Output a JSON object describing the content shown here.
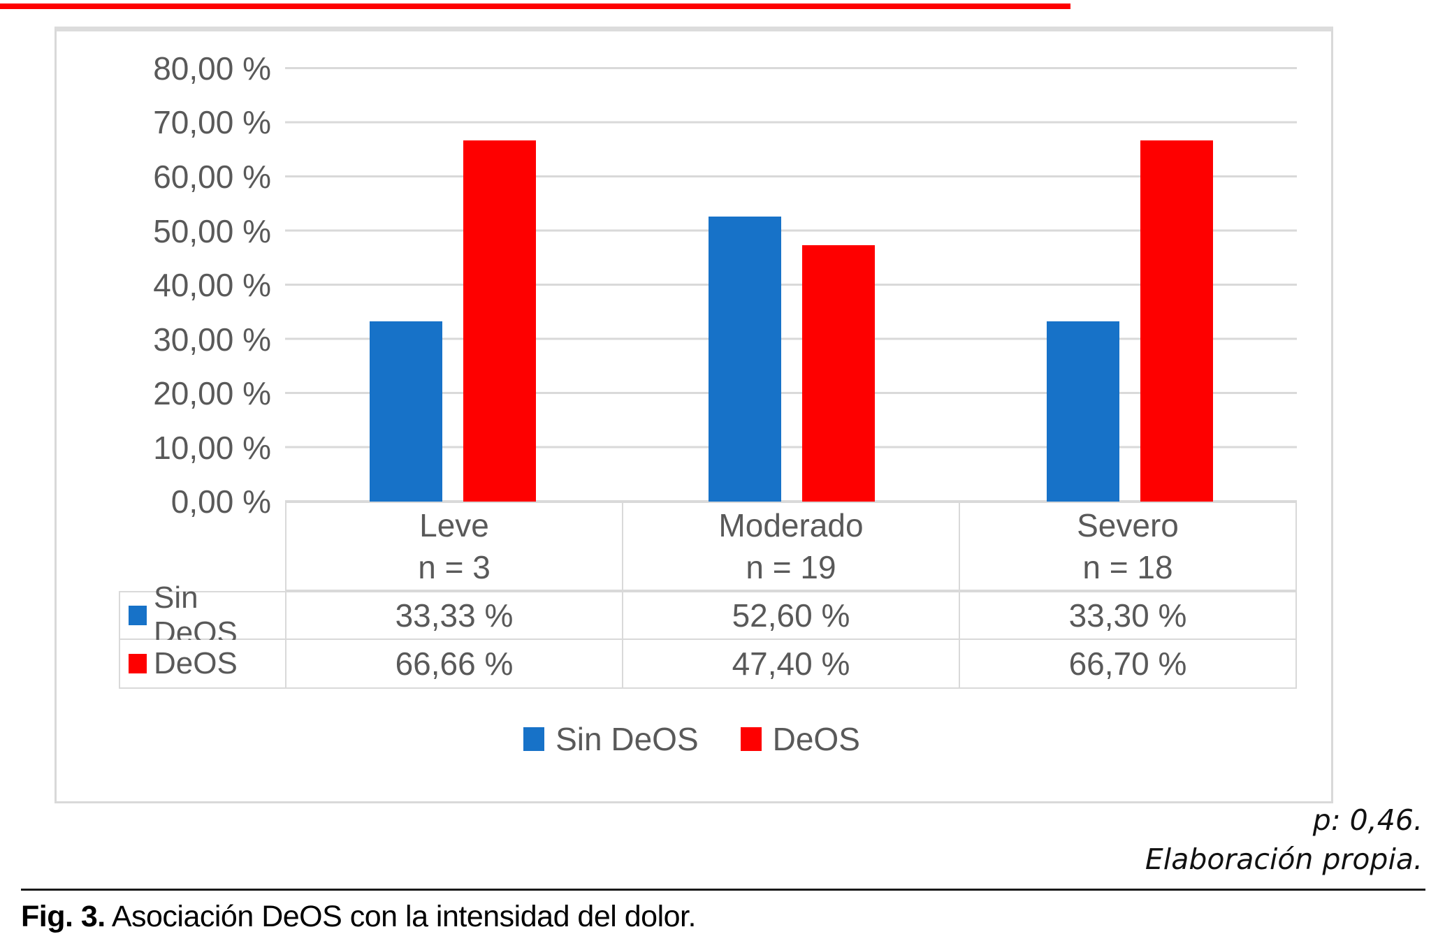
{
  "figure": {
    "caption_label": "Fig. 3.",
    "caption_text": "Asociación DeOS con la intensidad del dolor.",
    "note_p_value": "p: 0,46.",
    "note_source": "Elaboración propia."
  },
  "colors": {
    "series_blue": "#1772C8",
    "series_red": "#FE0000",
    "grid": "#D9D9D9",
    "axis_text": "#595959",
    "top_rule_red": "#FE0000"
  },
  "chart_data": {
    "type": "bar",
    "categories": [
      "Leve",
      "Moderado",
      "Severo"
    ],
    "category_sublabels": [
      "n = 3",
      "n = 19",
      "n = 18"
    ],
    "category_n": [
      3,
      19,
      18
    ],
    "series": [
      {
        "name": "Sin DeOS",
        "color": "#1772C8",
        "values": [
          33.33,
          52.6,
          33.3
        ],
        "value_labels": [
          "33,33 %",
          "52,60 %",
          "33,30 %"
        ]
      },
      {
        "name": "DeOS",
        "color": "#FE0000",
        "values": [
          66.66,
          47.4,
          66.7
        ],
        "value_labels": [
          "66,66 %",
          "47,40 %",
          "66,70 %"
        ]
      }
    ],
    "ylim": [
      0,
      80
    ],
    "ytick_step": 10,
    "yticks": [
      "80,00 %",
      "70,00 %",
      "60,00 %",
      "50,00 %",
      "40,00 %",
      "30,00 %",
      "20,00 %",
      "10,00 %",
      "0,00 %"
    ],
    "grid": true,
    "legend_position": "bottom",
    "legend": [
      "Sin DeOS",
      "DeOS"
    ]
  }
}
